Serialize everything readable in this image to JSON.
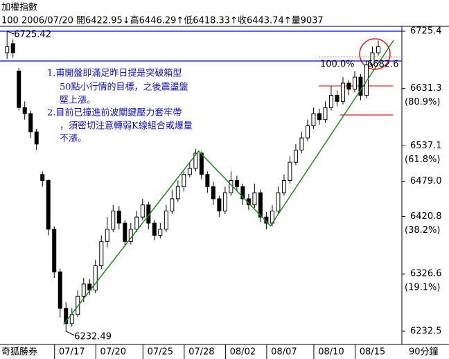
{
  "header": {
    "title": "加權指數",
    "info": "100 2006/07/20 開6422.95↓高6446.29↑低6418.33↑收6443.74↑量9037"
  },
  "footer": {
    "source": "奇狐勝券",
    "period": "90分鐘"
  },
  "notes": [
    "1.甫開盤即滿足昨日提是突破箱型",
    "50點小行情的目標，之後震盪盤",
    "堅上漲。",
    "2.目前已撞進前波關鍵壓力套牢帶",
    "，須密切注意轉弱K線組合或爆量",
    "不漲。"
  ],
  "chart_data": {
    "type": "candlestick",
    "categories": [
      "",
      null,
      null,
      null,
      null,
      null,
      null,
      null,
      null,
      null,
      null,
      "07/17",
      null,
      null,
      null,
      null,
      null,
      null,
      "07/20",
      null,
      null,
      null,
      null,
      null,
      null,
      null,
      "07/25",
      null,
      null,
      null,
      null,
      null,
      null,
      "07/28",
      null,
      null,
      null,
      null,
      null,
      null,
      "08/02",
      null,
      null,
      null,
      null,
      null,
      null,
      "08/07",
      null,
      null,
      null,
      null,
      null,
      null,
      null,
      "08/10",
      null,
      null,
      null,
      null,
      null,
      null,
      "08/15",
      null
    ],
    "open": [
      6690,
      6705,
      6660,
      6600,
      6590,
      6560,
      6490,
      6480,
      6400,
      6330,
      6270,
      6245,
      6260,
      6290,
      6310,
      6300,
      6340,
      6380,
      6400,
      6430,
      6410,
      6380,
      6400,
      6420,
      6440,
      6410,
      6390,
      6400,
      6430,
      6450,
      6470,
      6490,
      6500,
      6525,
      6490,
      6470,
      6450,
      6430,
      6460,
      6480,
      6470,
      6450,
      6440,
      6460,
      6420,
      6410,
      6430,
      6460,
      6480,
      6510,
      6530,
      6550,
      6570,
      6590,
      6580,
      6600,
      6620,
      6610,
      6640,
      6630,
      6650,
      6620,
      6670,
      6690
    ],
    "high": [
      6725.42,
      6712,
      6665,
      6610,
      6595,
      6565,
      6495,
      6482,
      6405,
      6335,
      6280,
      6270,
      6300,
      6320,
      6318,
      6350,
      6390,
      6420,
      6440,
      6438,
      6415,
      6410,
      6430,
      6450,
      6445,
      6415,
      6410,
      6440,
      6465,
      6480,
      6495,
      6510,
      6532,
      6528,
      6495,
      6478,
      6455,
      6470,
      6495,
      6488,
      6475,
      6458,
      6475,
      6465,
      6428,
      6440,
      6470,
      6490,
      6520,
      6540,
      6560,
      6580,
      6600,
      6598,
      6610,
      6635,
      6628,
      6650,
      6645,
      6660,
      6655,
      6678,
      6700,
      6710
    ],
    "low": [
      6680,
      6682,
      6595,
      6580,
      6550,
      6530,
      6470,
      6390,
      6320,
      6255,
      6232.49,
      6240,
      6255,
      6280,
      6292,
      6295,
      6335,
      6370,
      6395,
      6400,
      6372,
      6375,
      6395,
      6415,
      6400,
      6382,
      6385,
      6395,
      6425,
      6445,
      6462,
      6485,
      6495,
      6482,
      6460,
      6440,
      6420,
      6425,
      6455,
      6462,
      6440,
      6432,
      6435,
      6412,
      6400,
      6405,
      6425,
      6455,
      6475,
      6505,
      6525,
      6545,
      6565,
      6572,
      6575,
      6595,
      6602,
      6605,
      6620,
      6625,
      6612,
      6615,
      6665,
      6685
    ],
    "close": [
      6700,
      6690,
      6600,
      6590,
      6560,
      6540,
      6480,
      6400,
      6330,
      6270,
      6245,
      6260,
      6290,
      6310,
      6300,
      6340,
      6380,
      6400,
      6430,
      6410,
      6380,
      6400,
      6420,
      6440,
      6410,
      6390,
      6400,
      6430,
      6450,
      6470,
      6490,
      6500,
      6525,
      6490,
      6470,
      6450,
      6430,
      6460,
      6480,
      6470,
      6450,
      6440,
      6460,
      6420,
      6410,
      6430,
      6460,
      6480,
      6510,
      6530,
      6550,
      6570,
      6590,
      6580,
      6600,
      6620,
      6610,
      6640,
      6630,
      6650,
      6620,
      6670,
      6690,
      6700
    ],
    "up_color": "#ffffff",
    "down_color": "#000000",
    "xlim": [
      -1.2,
      67
    ],
    "ylim": [
      6213,
      6733.4
    ],
    "yticks": [
      6725.4,
      6631.3,
      6537.1,
      {
        "value": 6479,
        "label": "6479.0"
      },
      6420.8,
      6326.6,
      6232.5
    ],
    "ytick_notes": [
      null,
      "(80.9%)",
      "(61.8%)",
      null,
      "(38.2%)",
      "(19.1%)",
      null
    ],
    "hlines": [
      {
        "value": 6725.4,
        "color": "#0000ff",
        "x": [
          -1.2,
          67
        ]
      },
      {
        "value": 6676.5,
        "color": "#0000ff",
        "x": [
          -1.2,
          67
        ]
      },
      {
        "value": 6683.3,
        "color": "#ff9090",
        "x": [
          52.9,
          67
        ],
        "dashed": true
      },
      {
        "value": 6635.5,
        "color": "#e03030",
        "x": [
          52.9,
          65.5
        ]
      },
      {
        "value": 6587.7,
        "color": "#e03030",
        "x": [
          56.5,
          65.5
        ]
      }
    ],
    "trendline": {
      "x": [
        9.6,
        32.5,
        44.7,
        65.6
      ],
      "values": [
        6243.9,
        6528.5,
        6405.6,
        6710.6
      ],
      "color": "#1a8a1a"
    },
    "fib_label": "100.0%",
    "fib_value_label": "6682.6"
  }
}
